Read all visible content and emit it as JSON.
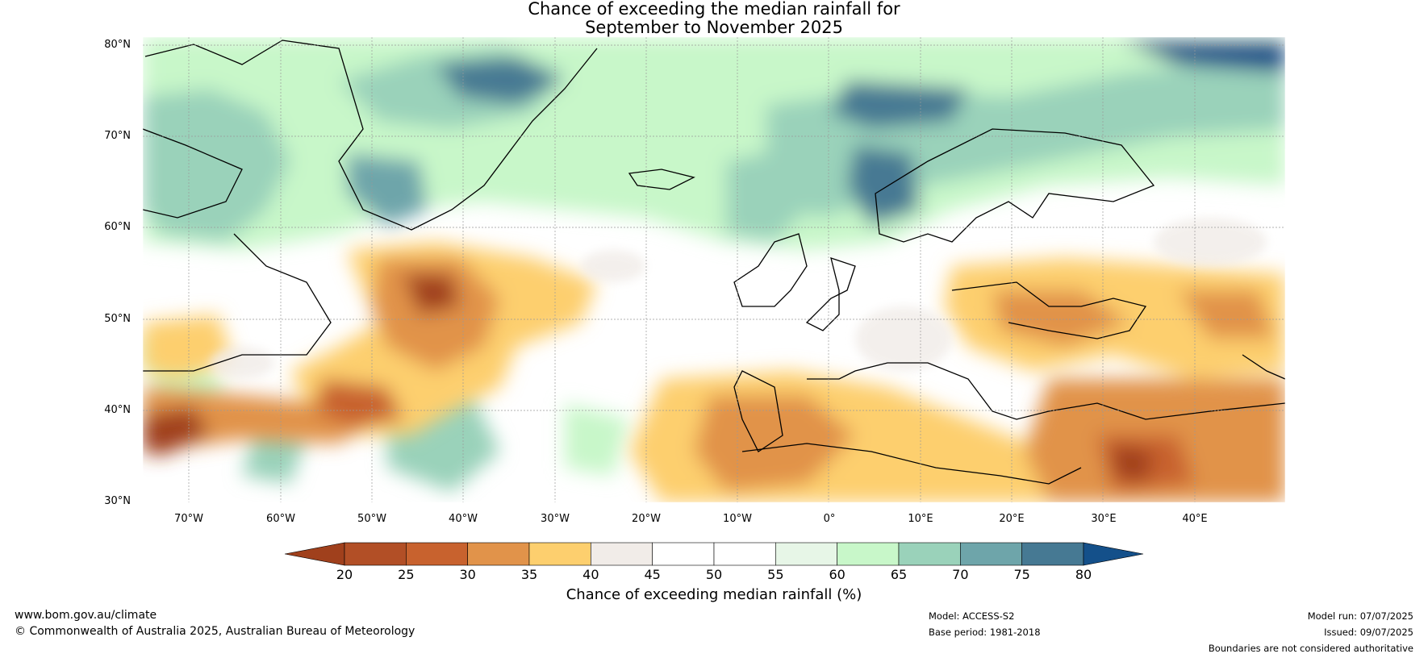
{
  "title_line1": "Chance of exceeding the median rainfall for",
  "title_line2": "September to November 2025",
  "lat_labels": [
    "80°N",
    "70°N",
    "60°N",
    "50°N",
    "40°N",
    "30°N"
  ],
  "lon_labels": [
    "70°W",
    "60°W",
    "50°W",
    "40°W",
    "30°W",
    "20°W",
    "10°W",
    "0°",
    "10°E",
    "20°E",
    "30°E",
    "40°E"
  ],
  "colorbar": {
    "ticks": [
      "20",
      "25",
      "30",
      "35",
      "40",
      "45",
      "50",
      "55",
      "60",
      "65",
      "70",
      "75",
      "80"
    ],
    "colors": [
      "#a0401c",
      "#b24f26",
      "#c8622e",
      "#e1934a",
      "#fdcf6e",
      "#f1ece8",
      "#ffffff",
      "#ffffff",
      "#e7f6e7",
      "#c8f7c9",
      "#9ad2ba",
      "#6ea5aa",
      "#467993",
      "#14508a"
    ],
    "title": "Chance of exceeding median rainfall (%)"
  },
  "footer": {
    "website": "www.bom.gov.au/climate",
    "copyright": "© Commonwealth of Australia 2025, Australian Bureau of Meteorology",
    "model": "Model: ACCESS-S2",
    "base_period": "Base period: 1981-2018",
    "model_run": "Model run: 07/07/2025",
    "issued": "Issued: 09/07/2025",
    "boundaries": "Boundaries are not considered authoritative"
  }
}
